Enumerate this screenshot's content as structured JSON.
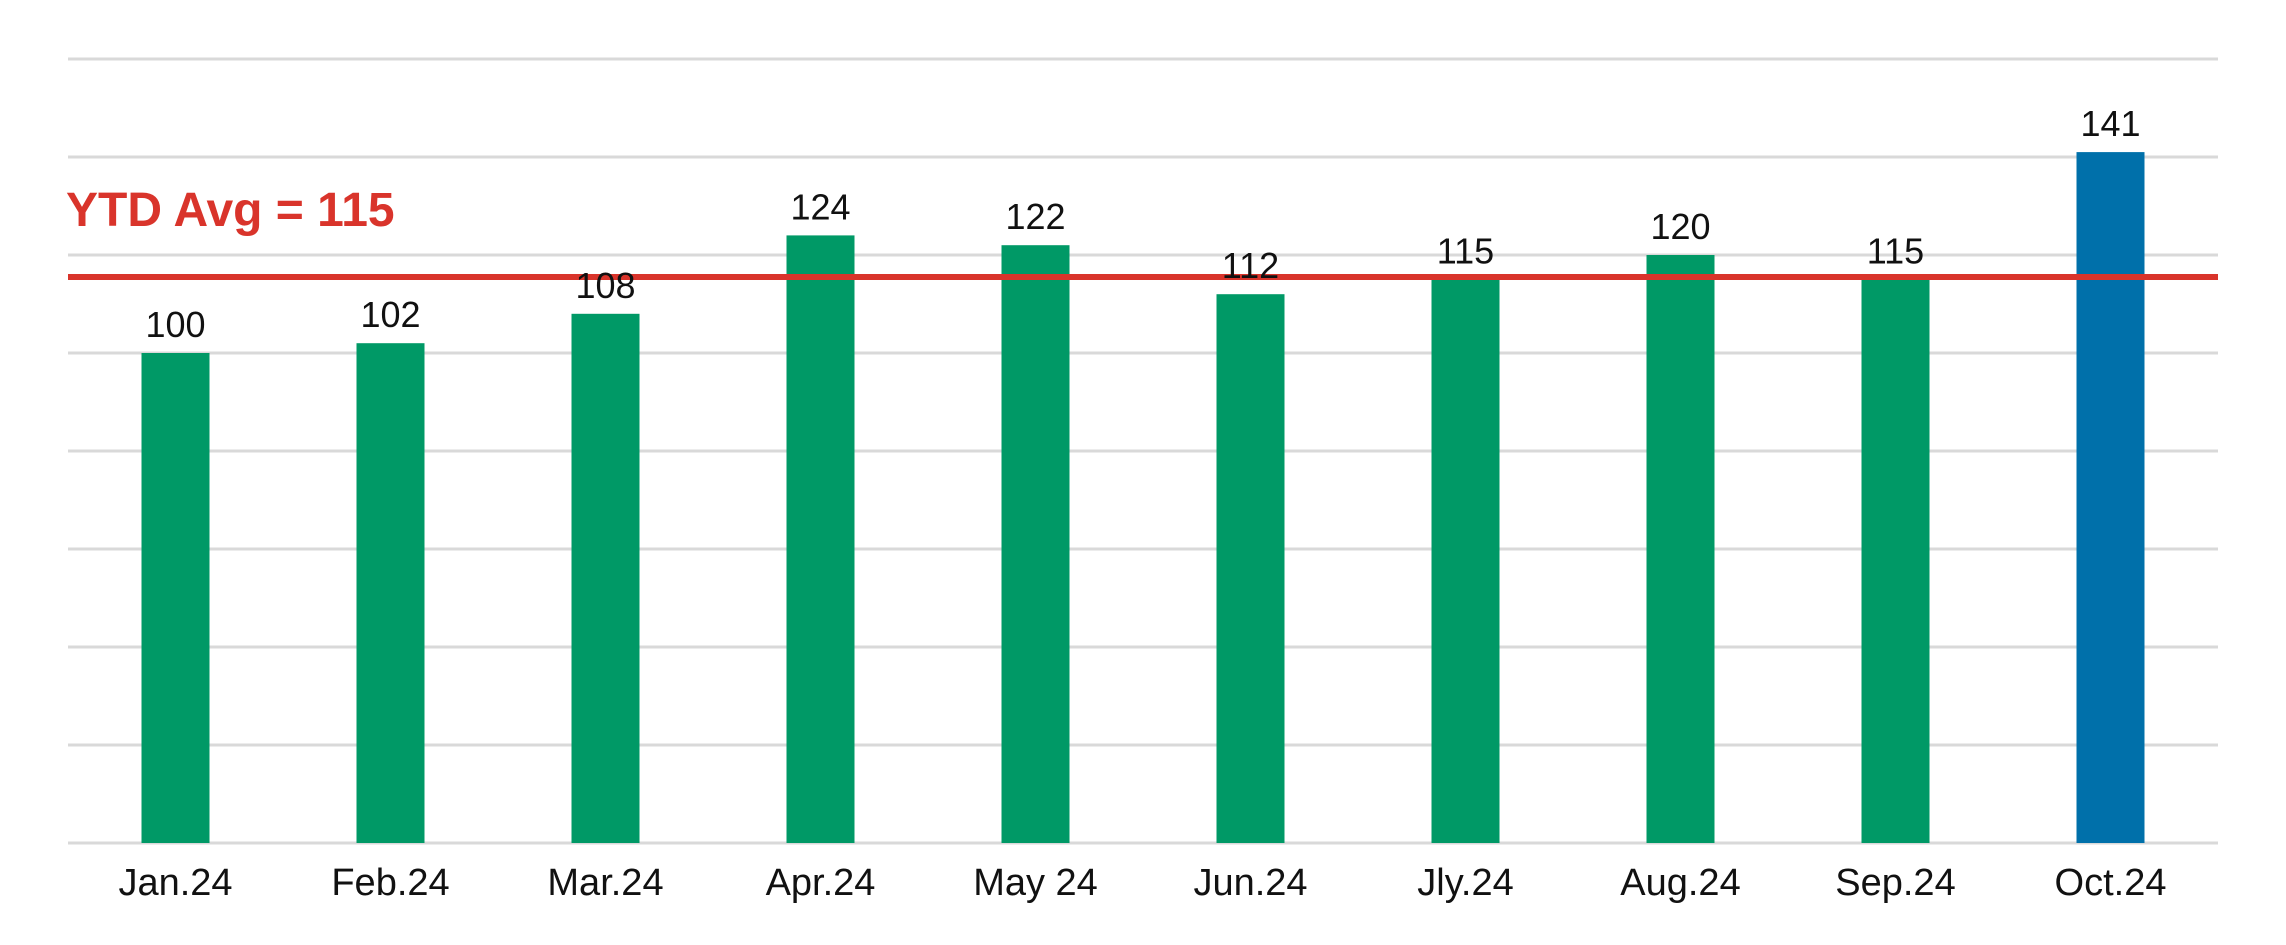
{
  "chart_data": {
    "type": "bar",
    "categories": [
      "Jan.24",
      "Feb.24",
      "Mar.24",
      "Apr.24",
      "May 24",
      "Jun.24",
      "Jly.24",
      "Aug.24",
      "Sep.24",
      "Oct.24"
    ],
    "values": [
      100,
      102,
      108,
      124,
      122,
      112,
      115,
      120,
      115,
      141
    ],
    "title": "",
    "xlabel": "",
    "ylabel": "",
    "ylim": [
      0,
      160
    ],
    "grid": true,
    "y_tick_labels_shown": false,
    "reference_line": {
      "value": 115,
      "label": "YTD Avg = 115"
    },
    "highlight_category": "Oct.24"
  },
  "colors": {
    "bar": "#009966",
    "highlight_bar": "#0070aa",
    "reference_line": "#d9342b",
    "grid": "#d9d9d9"
  }
}
